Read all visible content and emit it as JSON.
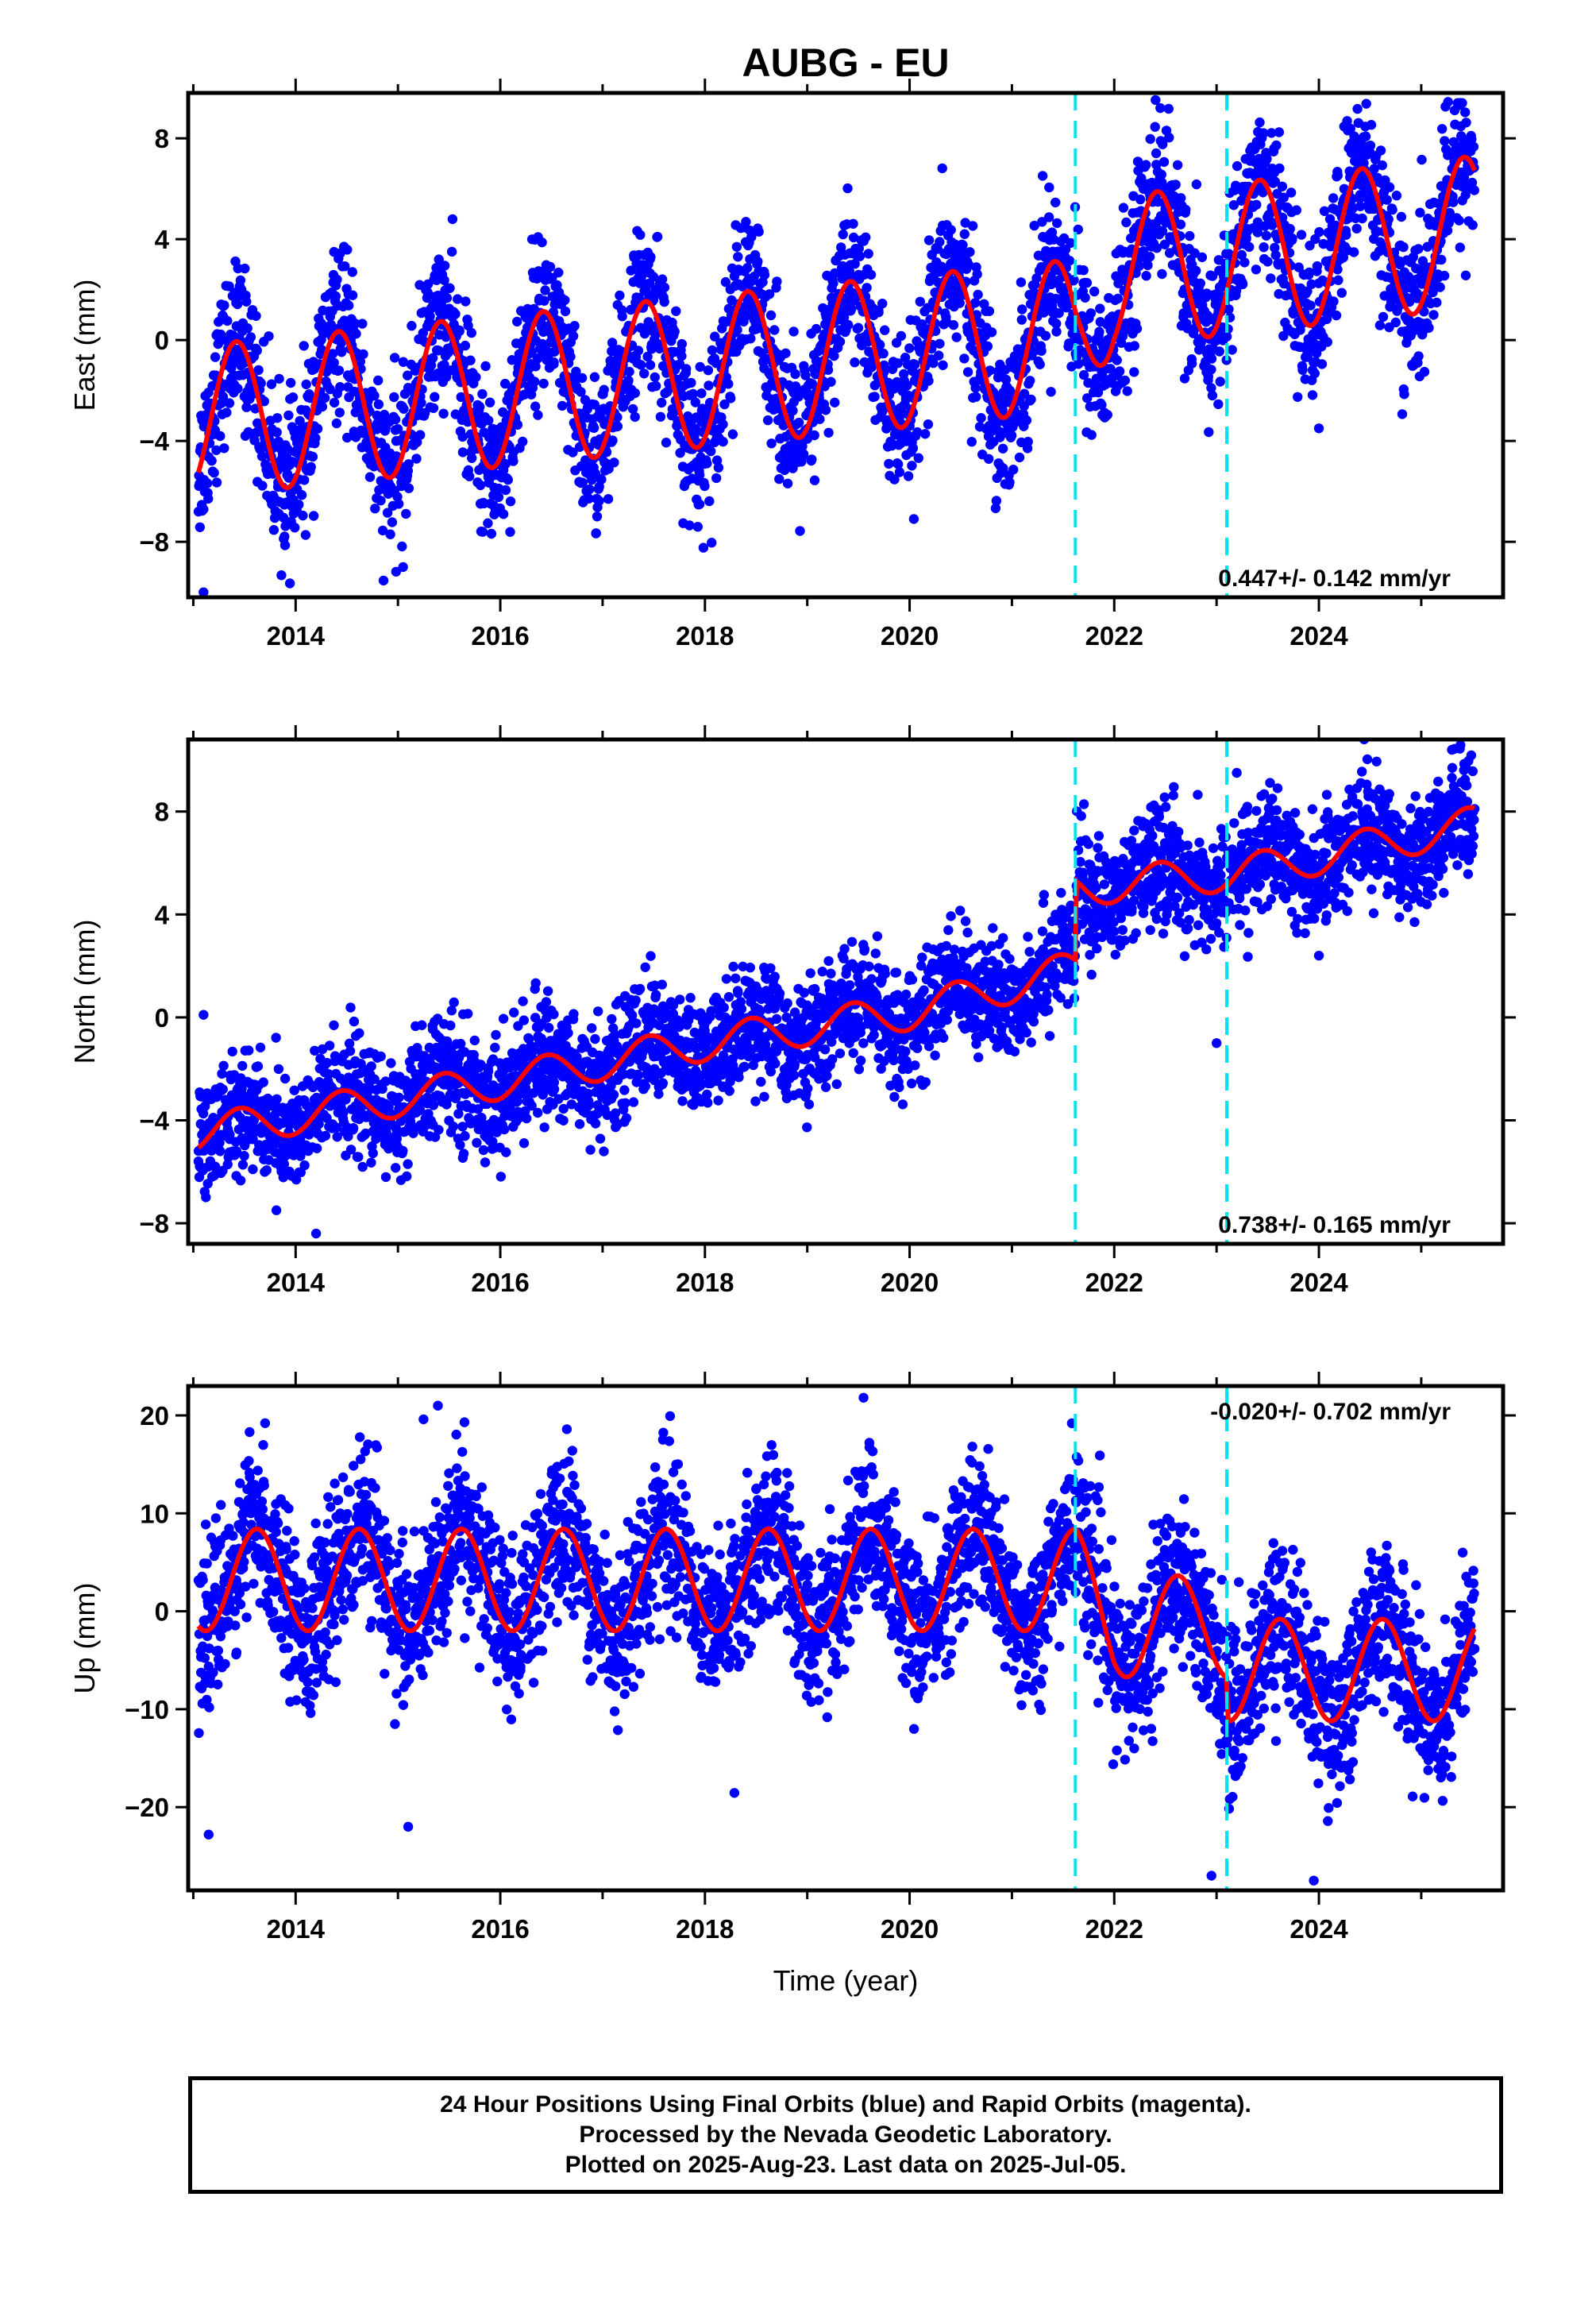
{
  "title": "AUBG - EU",
  "xlabel": "Time (year)",
  "footer": {
    "line1": "24 Hour Positions Using Final Orbits (blue) and Rapid Orbits (magenta).",
    "line2": "Processed by the Nevada Geodetic Laboratory.",
    "line3": "Plotted on 2025-Aug-23. Last data on 2025-Jul-05."
  },
  "colors": {
    "points": "#0000ff",
    "fit": "#ff0000",
    "events": "#00e5ee",
    "frame": "#000000"
  },
  "chart_data": [
    {
      "type": "scatter",
      "name": "east",
      "ylabel": "East (mm)",
      "rate_text": "0.447+/- 0.142 mm/yr",
      "xlim": [
        2012.95,
        2025.8
      ],
      "ylim": [
        -10.2,
        9.8
      ],
      "yticks": [
        -8,
        -4,
        0,
        4,
        8
      ],
      "xticks": [
        2014,
        2016,
        2018,
        2020,
        2022,
        2024
      ],
      "event_lines": [
        2021.62,
        2023.1
      ],
      "fit": {
        "start": 2013.05,
        "end": 2025.52,
        "trend": [
          [
            2013.05,
            -3.2
          ],
          [
            2021.62,
            0.2
          ],
          [
            2022.0,
            2.7
          ],
          [
            2023.1,
            3.2
          ],
          [
            2025.52,
            4.3
          ]
        ],
        "amplitude": 3.0,
        "peak": 2013.42,
        "period": 1.0
      },
      "scatter": {
        "sigma": 1.5,
        "count": 3600
      },
      "outliers": [
        [
          2013.1,
          -10.0
        ],
        [
          2015.05,
          -9.0
        ],
        [
          2022.45,
          9.2
        ],
        [
          2025.4,
          9.4
        ],
        [
          2024.0,
          -3.5
        ]
      ]
    },
    {
      "type": "scatter",
      "name": "north",
      "ylabel": "North (mm)",
      "rate_text": "0.738+/- 0.165 mm/yr",
      "xlim": [
        2012.95,
        2025.8
      ],
      "ylim": [
        -8.8,
        10.8
      ],
      "yticks": [
        -8,
        -4,
        0,
        4,
        8
      ],
      "xticks": [
        2014,
        2016,
        2018,
        2020,
        2022,
        2024
      ],
      "event_lines": [
        2021.62,
        2023.1
      ],
      "fit": {
        "start": 2013.05,
        "end": 2025.52,
        "trend": [
          [
            2013.05,
            -4.5
          ],
          [
            2016.0,
            -2.5
          ],
          [
            2018.0,
            -1.0
          ],
          [
            2020.0,
            0.2
          ],
          [
            2021.62,
            1.9
          ],
          [
            2021.63,
            5.0
          ],
          [
            2023.1,
            5.6
          ],
          [
            2023.11,
            5.5
          ],
          [
            2025.52,
            7.5
          ]
        ],
        "amplitude": 0.7,
        "peak": 2013.45,
        "period": 1.0
      },
      "scatter": {
        "sigma": 1.1,
        "count": 3600
      },
      "outliers": [
        [
          2013.1,
          0.1
        ],
        [
          2014.2,
          -8.4
        ],
        [
          2023.0,
          -1.0
        ],
        [
          2025.3,
          10.4
        ],
        [
          2024.0,
          2.4
        ]
      ]
    },
    {
      "type": "scatter",
      "name": "up",
      "ylabel": "Up (mm)",
      "rate_text": "-0.020+/- 0.702 mm/yr",
      "xlim": [
        2012.95,
        2025.8
      ],
      "ylim": [
        -28.5,
        23.0
      ],
      "yticks": [
        -20,
        -10,
        0,
        10,
        20
      ],
      "xticks": [
        2014,
        2016,
        2018,
        2020,
        2022,
        2024
      ],
      "event_lines": [
        2021.62,
        2023.1
      ],
      "fit": {
        "start": 2013.05,
        "end": 2025.52,
        "trend": [
          [
            2013.05,
            3.2
          ],
          [
            2021.62,
            3.2
          ],
          [
            2022.0,
            -1.5
          ],
          [
            2023.1,
            -1.6
          ],
          [
            2023.11,
            -6.0
          ],
          [
            2025.52,
            -6.0
          ]
        ],
        "amplitude": 5.2,
        "peak": 2013.62,
        "period": 1.0
      },
      "scatter": {
        "sigma": 4.0,
        "count": 3600
      },
      "outliers": [
        [
          2013.15,
          -22.8
        ],
        [
          2015.1,
          -22.0
        ],
        [
          2015.25,
          19.6
        ],
        [
          2019.55,
          21.8
        ],
        [
          2022.95,
          -27.0
        ],
        [
          2023.95,
          -27.5
        ],
        [
          2013.55,
          18.3
        ],
        [
          2015.65,
          19.3
        ]
      ]
    }
  ]
}
